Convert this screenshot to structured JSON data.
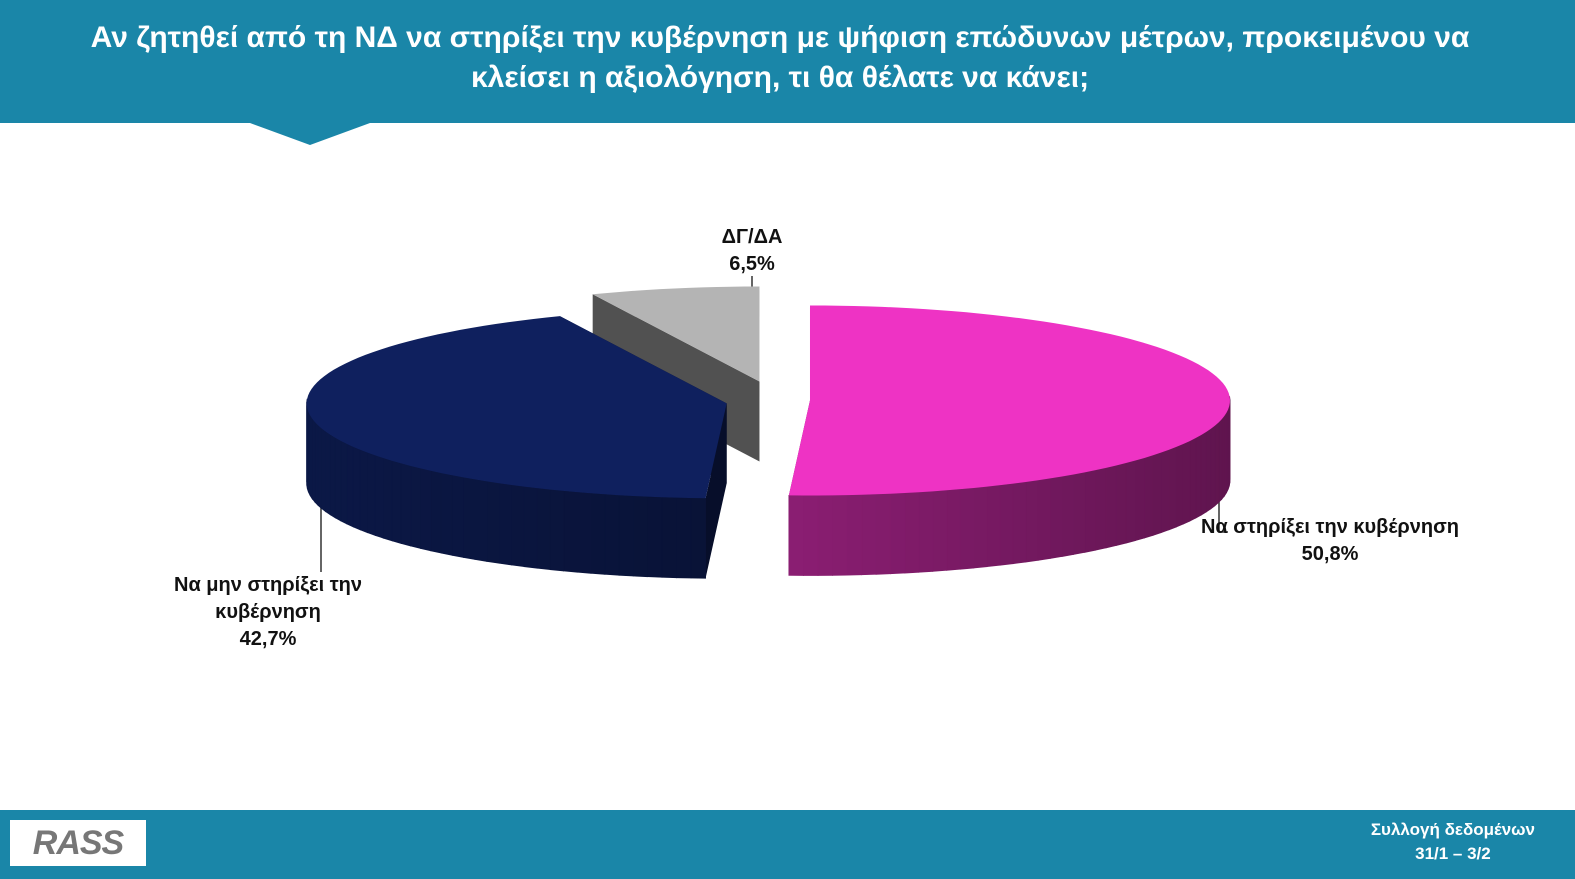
{
  "chart_data": {
    "type": "pie",
    "title": "Αν ζητηθεί από τη ΝΔ να στηρίξει την κυβέρνηση με ψήφιση  επώδυνων μέτρων, προκειμένου να κλείσει η αξιολόγηση, τι θα θέλατε να κάνει;",
    "categories": [
      "Να στηρίξει την κυβέρνηση",
      "Να μην στηρίξει την κυβέρνηση",
      "ΔΓ/ΔΑ"
    ],
    "values": [
      50.8,
      42.7,
      6.5
    ],
    "value_labels": [
      "50,8%",
      "42,7%",
      "6,5%"
    ],
    "colors": [
      "#ee33c4",
      "#0f205e",
      "#b4b4b4"
    ]
  },
  "footer": {
    "logo": "RASS",
    "note": "Συλλογή δεδομένων",
    "dates": "31/1 – 3/2"
  }
}
